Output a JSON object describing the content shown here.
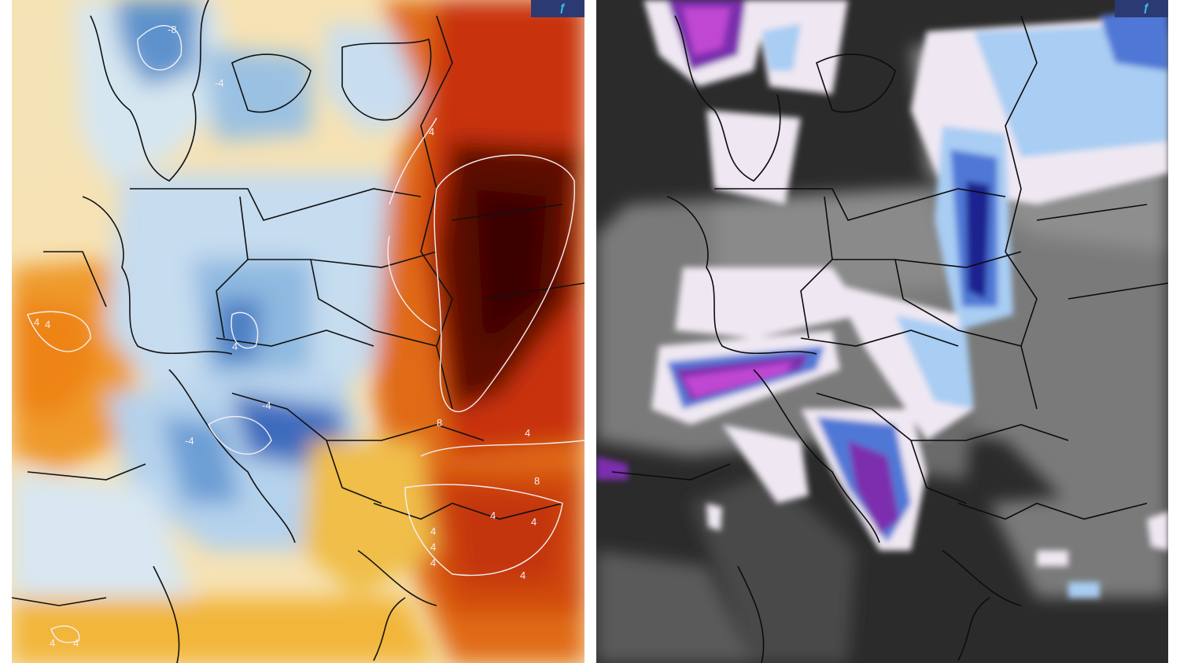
{
  "left_map": {
    "colors": {
      "warm_dark": "#3a0504",
      "warm_red": "#c32a08",
      "warm_orange": "#ef8c1c",
      "warm_yellow": "#f9dc8c",
      "neutral": "#f3ede4",
      "cool_light": "#c9dff0",
      "cool_mid": "#84b3dc",
      "cool_dark": "#1f4ea6",
      "cool_deep": "#0a1c7a",
      "contour": "#f3f0f6",
      "border": "#111111"
    },
    "contour_labels": [
      "-8",
      "-4",
      "-4",
      "-4",
      "4",
      "4",
      "4",
      "4",
      "4",
      "4",
      "8",
      "8",
      "4",
      "4",
      "4",
      "4",
      "4",
      "4",
      "4"
    ]
  },
  "right_map": {
    "colors": {
      "bg_dark": "#2b2b2b",
      "land_gray": "#7a7a7a",
      "light_gray": "#a6a6a6",
      "snow_white": "#efe8f2",
      "snow_light_blue": "#a9cdf3",
      "snow_blue": "#4f78d6",
      "snow_deep_blue": "#1a238f",
      "snow_purple": "#7b2fae",
      "snow_magenta": "#c046d2",
      "border": "#0c0c0c"
    }
  },
  "logo_glyph": "ƒ"
}
